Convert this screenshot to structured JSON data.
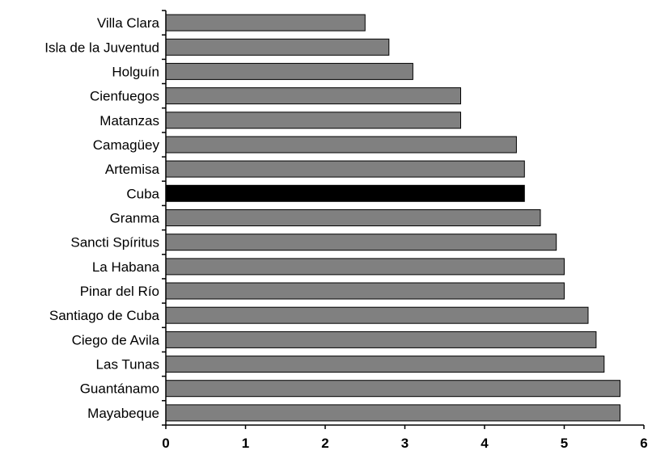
{
  "chart_data": {
    "type": "bar",
    "orientation": "horizontal",
    "title": "",
    "xlabel": "",
    "ylabel": "",
    "categories": [
      "Villa Clara",
      "Isla de la Juventud",
      "Holguín",
      "Cienfuegos",
      "Matanzas",
      "Camagüey",
      "Artemisa",
      "Cuba",
      "Granma",
      "Sancti Spíritus",
      "La Habana",
      "Pinar del Río",
      "Santiago de Cuba",
      "Ciego de Avila",
      "Las Tunas",
      "Guantánamo",
      "Mayabeque"
    ],
    "values": [
      2.5,
      2.8,
      3.1,
      3.7,
      3.7,
      4.4,
      4.5,
      4.5,
      4.7,
      4.9,
      5.0,
      5.0,
      5.3,
      5.4,
      5.5,
      5.7,
      5.7
    ],
    "xlim": [
      0,
      6
    ],
    "xticks": [
      "0",
      "1",
      "2",
      "3",
      "4",
      "5",
      "6"
    ],
    "grid": false,
    "legend": "none",
    "colors": {
      "bar": "#808080",
      "highlight_bar": "#000000",
      "highlight_category": "Cuba",
      "bar_stroke": "#000000",
      "axis": "#000000"
    }
  }
}
